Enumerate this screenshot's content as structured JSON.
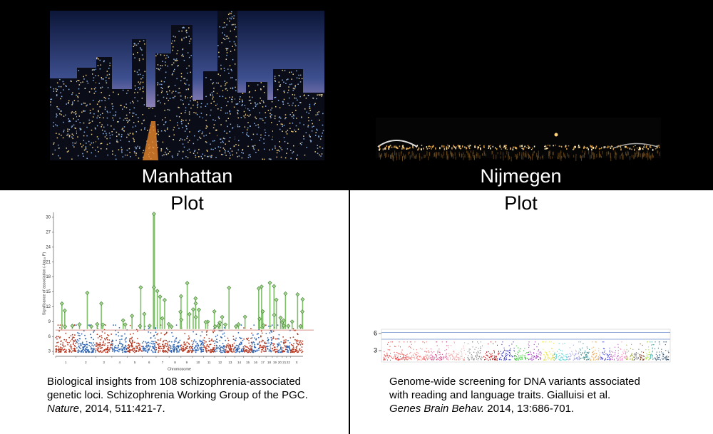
{
  "panels": [
    {
      "title_top": "Manhattan",
      "title_bottom": "Plot",
      "figure": {
        "yticks": [
          3,
          6,
          9,
          12,
          15,
          18,
          21,
          24,
          27,
          30
        ],
        "ylim": [
          2.3,
          31
        ],
        "y_label": "Significance of association (-log₁₀ P)",
        "x_label": "Chromosome",
        "x_categories": [
          "1",
          "2",
          "3",
          "4",
          "5",
          "6",
          "7",
          "8",
          "9",
          "10",
          "11",
          "12",
          "13",
          "14",
          "15",
          "16",
          "17",
          "18",
          "19",
          "20",
          "21",
          "22",
          "X"
        ]
      },
      "citation": {
        "lines": [
          "Biological insights from 108 schizophrenia-associated",
          "genetic loci. Schizophrenia Working Group of the PGC."
        ],
        "journal": "Nature",
        "details": ", 2014, 511:421-7."
      }
    },
    {
      "title_top": "Nijmegen",
      "title_bottom": "Plot",
      "figure": {
        "yticks": [
          3,
          6
        ],
        "ylim": [
          1,
          6.75
        ]
      },
      "citation": {
        "lines": [
          "Genome-wide screening for DNA variants associated",
          "with reading and language traits. Gialluisi et al."
        ],
        "journal": "Genes Brain Behav.",
        "details": " 2014, 13:686-701."
      }
    }
  ]
}
